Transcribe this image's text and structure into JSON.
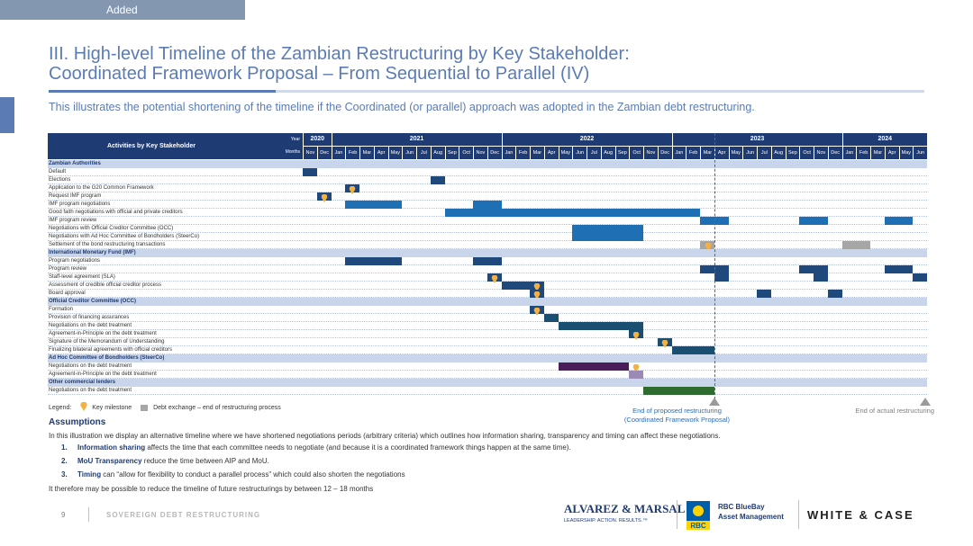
{
  "tab_label": "Added",
  "title_line1": "III. High-level Timeline of the Zambian Restructuring by Key Stakeholder:",
  "title_line2": "Coordinated Framework Proposal – From Sequential to Parallel (IV)",
  "subtitle": "This illustrates the potential shortening of the timeline if the Coordinated (or parallel) approach was adopted in the Zambian debt restructuring.",
  "gantt": {
    "header_activities": "Activities by Key Stakeholder",
    "header_year": "Year",
    "header_months": "Months",
    "years": [
      {
        "label": "2020",
        "start": 0,
        "span": 2
      },
      {
        "label": "2021",
        "start": 2,
        "span": 12
      },
      {
        "label": "2022",
        "start": 14,
        "span": 12
      },
      {
        "label": "2023",
        "start": 26,
        "span": 12
      },
      {
        "label": "2024",
        "start": 38,
        "span": 6
      }
    ],
    "months": [
      "Nov",
      "Dec",
      "Jan",
      "Feb",
      "Mar",
      "Apr",
      "May",
      "Jun",
      "Jul",
      "Aug",
      "Sep",
      "Oct",
      "Nov",
      "Dec",
      "Jan",
      "Feb",
      "Mar",
      "Apr",
      "May",
      "Jun",
      "Jul",
      "Aug",
      "Sep",
      "Oct",
      "Nov",
      "Dec",
      "Jan",
      "Feb",
      "Mar",
      "Apr",
      "May",
      "Jun",
      "Jul",
      "Aug",
      "Sep",
      "Oct",
      "Nov",
      "Dec",
      "Jan",
      "Feb",
      "Mar",
      "Apr",
      "May",
      "Jun"
    ],
    "rows": [
      {
        "label": "Zambian Authorities",
        "section": true
      },
      {
        "label": "Default",
        "bars": [
          [
            0,
            1,
            "navy"
          ]
        ]
      },
      {
        "label": "Elections",
        "bars": [
          [
            9,
            10,
            "navy"
          ]
        ]
      },
      {
        "label": "Application to the G20 Common Framework",
        "bars": [
          [
            3,
            4,
            "navy"
          ]
        ],
        "milestones": [
          3.5
        ]
      },
      {
        "label": "Request IMF program",
        "bars": [
          [
            1,
            2,
            "navy"
          ]
        ],
        "milestones": [
          1.5
        ]
      },
      {
        "label": "IMF program negotiations",
        "bars": [
          [
            3,
            7,
            "blue"
          ],
          [
            12,
            14,
            "blue"
          ]
        ]
      },
      {
        "label": "Good faith negotiations with official and private creditors",
        "bars": [
          [
            10,
            28,
            "blue"
          ]
        ]
      },
      {
        "label": "IMF program review",
        "bars": [
          [
            28,
            30,
            "blue"
          ],
          [
            35,
            37,
            "blue"
          ],
          [
            41,
            43,
            "blue"
          ]
        ]
      },
      {
        "label": "Negotiations with Official Creditor Committee (OCC)",
        "bars": [
          [
            19,
            24,
            "blue"
          ]
        ]
      },
      {
        "label": "Negotiations with Ad Hoc Committee of Bondholders (SteerCo)",
        "bars": [
          [
            19,
            24,
            "blue"
          ]
        ]
      },
      {
        "label": "Settlement of the bond restructuring transactions",
        "bars": [
          [
            28,
            29,
            "grey"
          ],
          [
            38,
            40,
            "grey"
          ]
        ],
        "milestones": [
          28.6
        ]
      },
      {
        "label": "International Monetary Fund (IMF)",
        "section": true
      },
      {
        "label": "Program negotiations",
        "bars": [
          [
            3,
            7,
            "navy"
          ],
          [
            12,
            14,
            "navy"
          ]
        ]
      },
      {
        "label": "Program review",
        "bars": [
          [
            28,
            30,
            "navy"
          ],
          [
            35,
            37,
            "navy"
          ],
          [
            41,
            43,
            "navy"
          ]
        ]
      },
      {
        "label": "Staff-level agreement (SLA)",
        "bars": [
          [
            13,
            14,
            "navy"
          ],
          [
            29,
            30,
            "navy"
          ],
          [
            36,
            37,
            "navy"
          ],
          [
            43,
            44,
            "navy"
          ]
        ],
        "milestones": [
          13.5
        ]
      },
      {
        "label": "Assessment of credible official creditor process",
        "bars": [
          [
            14,
            17,
            "navy"
          ]
        ],
        "milestones": [
          16.5
        ]
      },
      {
        "label": "Board approval",
        "bars": [
          [
            16,
            17,
            "navy"
          ],
          [
            32,
            33,
            "navy"
          ],
          [
            37,
            38,
            "navy"
          ]
        ],
        "milestones": [
          16.5
        ]
      },
      {
        "label": "Official Creditor Committee (OCC)",
        "section": true
      },
      {
        "label": "Formation",
        "bars": [
          [
            16,
            17,
            "navy"
          ]
        ],
        "milestones": [
          16.5
        ]
      },
      {
        "label": "Provision of financing assurances",
        "bars": [
          [
            17,
            18,
            "teal"
          ]
        ]
      },
      {
        "label": "Negotiations on the debt treatment",
        "bars": [
          [
            18,
            24,
            "teal"
          ]
        ]
      },
      {
        "label": "Agreement-in-Principle on the debt treatment",
        "bars": [
          [
            23,
            24,
            "teal"
          ]
        ],
        "milestones": [
          23.5
        ]
      },
      {
        "label": "Signature of the Memorandum of Understanding",
        "bars": [
          [
            25,
            26,
            "teal"
          ]
        ],
        "milestones": [
          25.5
        ]
      },
      {
        "label": "Finalizing bilateral agreements with official creditors",
        "bars": [
          [
            26,
            29,
            "teal"
          ]
        ]
      },
      {
        "label": "Ad Hoc Committee of Bondholders (SteerCo)",
        "section": true
      },
      {
        "label": "Negotiations on the debt treatment",
        "bars": [
          [
            18,
            23,
            "purple"
          ]
        ],
        "milestones": [
          23.5
        ]
      },
      {
        "label": "Agreement-in-Principle on the debt treatment",
        "bars": [
          [
            23,
            24,
            "lightpurple"
          ]
        ]
      },
      {
        "label": "Other commercial lenders",
        "section": true
      },
      {
        "label": "Negotiations on the debt treatment",
        "bars": [
          [
            24,
            29,
            "green"
          ]
        ]
      }
    ],
    "proposed_end_month": 29,
    "actual_end_month": 44
  },
  "legend": {
    "label": "Legend:",
    "milestone": "Key milestone",
    "debt_exchange": "Debt exchange – end of restructuring process"
  },
  "end_proposed": "End of proposed restructuring",
  "end_proposed_sub": "(Coordinated Framework Proposal)",
  "end_actual": "End of actual restructuring",
  "assumptions": {
    "heading": "Assumptions",
    "intro": "In this illustration we display an alternative timeline where we have shortened negotiations periods (arbitrary criteria) which outlines how information sharing, transparency and timing can affect these negotiations.",
    "items": [
      {
        "num": "1.",
        "bold": "Information sharing",
        "text": " affects the time that each committee needs to negotiate (and because it is a coordinated framework things happen at the same time)."
      },
      {
        "num": "2.",
        "bold": "MoU Transparency",
        "text": " reduce the time between AIP and MoU."
      },
      {
        "num": "3.",
        "bold": "Timing",
        "text": " can “allow for flexibility to conduct a parallel process” which could also shorten the negotiations"
      }
    ],
    "outro": "It therefore may be possible to reduce the timeline of future restructurings by between 12 – 18 months"
  },
  "footer": {
    "page": "9",
    "text": "SOVEREIGN DEBT RESTRUCTURING",
    "am_name": "ALVAREZ & MARSAL",
    "am_tag": "LEADERSHIP. ACTION. RESULTS.™",
    "rbc_mark": "RBC",
    "rbc_line1": "RBC BlueBay",
    "rbc_line2": "Asset Management",
    "wc": "WHITE & CASE"
  },
  "colors": {
    "navy": "#1f497d",
    "blue": "#1f6fb5",
    "teal": "#1b4f72",
    "purple": "#4b1c5a",
    "lightpurple": "#9a8bb5",
    "green": "#2e6b30",
    "grey": "#a6a6a6",
    "milestone": "#f5b041",
    "accent": "#5b7bb5"
  }
}
